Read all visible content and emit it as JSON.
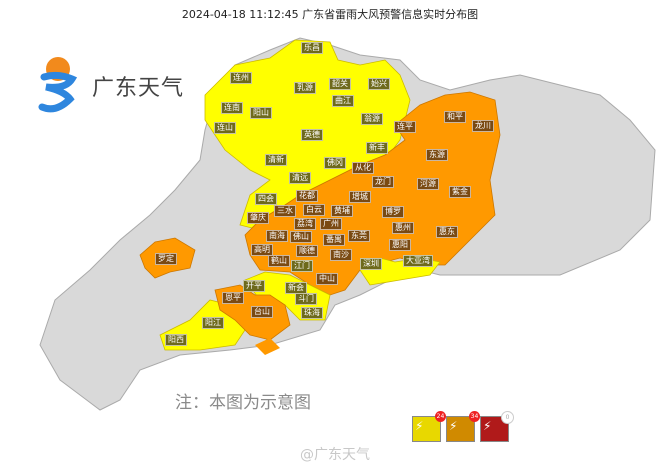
{
  "title": "2024-04-18 11:12:45 广东省雷雨大风预警信息实时分布图",
  "logo": {
    "text": "广东天气",
    "icon": "guangdong-weather-sun-swirl-logo"
  },
  "colors": {
    "yellow_warning": "#ffff00",
    "orange_warning": "#ff9900",
    "no_warning": "#d9d9d9",
    "border": "#aaaaaa"
  },
  "map": {
    "labels": [
      {
        "name": "乐昌",
        "level": "yellow"
      },
      {
        "name": "连州",
        "level": "yellow"
      },
      {
        "name": "乳源",
        "level": "yellow"
      },
      {
        "name": "韶关",
        "level": "yellow"
      },
      {
        "name": "始兴",
        "level": "yellow"
      },
      {
        "name": "曲江",
        "level": "yellow"
      },
      {
        "name": "连南",
        "level": "yellow"
      },
      {
        "name": "阳山",
        "level": "yellow"
      },
      {
        "name": "连山",
        "level": "yellow"
      },
      {
        "name": "英德",
        "level": "yellow"
      },
      {
        "name": "翁源",
        "level": "yellow"
      },
      {
        "name": "新丰",
        "level": "yellow"
      },
      {
        "name": "连平",
        "level": "orange"
      },
      {
        "name": "和平",
        "level": "orange"
      },
      {
        "name": "龙川",
        "level": "orange"
      },
      {
        "name": "东源",
        "level": "orange"
      },
      {
        "name": "清新",
        "level": "yellow"
      },
      {
        "name": "佛冈",
        "level": "yellow"
      },
      {
        "name": "从化",
        "level": "orange"
      },
      {
        "name": "龙门",
        "level": "orange"
      },
      {
        "name": "河源",
        "level": "orange"
      },
      {
        "name": "紫金",
        "level": "orange"
      },
      {
        "name": "清远",
        "level": "yellow"
      },
      {
        "name": "花都",
        "level": "orange"
      },
      {
        "name": "四会",
        "level": "yellow"
      },
      {
        "name": "增城",
        "level": "orange"
      },
      {
        "name": "博罗",
        "level": "orange"
      },
      {
        "name": "三水",
        "level": "orange"
      },
      {
        "name": "白云",
        "level": "orange"
      },
      {
        "name": "黄埔",
        "level": "orange"
      },
      {
        "name": "肇庆",
        "level": "orange"
      },
      {
        "name": "广州",
        "level": "orange"
      },
      {
        "name": "荔湾",
        "level": "orange"
      },
      {
        "name": "惠州",
        "level": "orange"
      },
      {
        "name": "南海",
        "level": "orange"
      },
      {
        "name": "佛山",
        "level": "orange"
      },
      {
        "name": "番禺",
        "level": "orange"
      },
      {
        "name": "东莞",
        "level": "orange"
      },
      {
        "name": "惠阳",
        "level": "orange"
      },
      {
        "name": "惠东",
        "level": "orange"
      },
      {
        "name": "高明",
        "level": "orange"
      },
      {
        "name": "顺德",
        "level": "orange"
      },
      {
        "name": "南沙",
        "level": "orange"
      },
      {
        "name": "深圳",
        "level": "yellow"
      },
      {
        "name": "大亚湾",
        "level": "yellow"
      },
      {
        "name": "鹤山",
        "level": "orange"
      },
      {
        "name": "江门",
        "level": "yellow"
      },
      {
        "name": "中山",
        "level": "orange"
      },
      {
        "name": "罗定",
        "level": "orange"
      },
      {
        "name": "开平",
        "level": "yellow"
      },
      {
        "name": "新会",
        "level": "yellow"
      },
      {
        "name": "恩平",
        "level": "orange"
      },
      {
        "name": "斗门",
        "level": "yellow"
      },
      {
        "name": "台山",
        "level": "orange"
      },
      {
        "name": "珠海",
        "level": "yellow"
      },
      {
        "name": "阳江",
        "level": "yellow"
      },
      {
        "name": "阳西",
        "level": "yellow"
      }
    ]
  },
  "note": "注：本图为示意图",
  "legend": [
    {
      "signal": "thunderstorm-gale-yellow",
      "color": "#e8d800",
      "count": "24"
    },
    {
      "signal": "thunderstorm-gale-orange",
      "color": "#d08a00",
      "count": "34"
    },
    {
      "signal": "thunderstorm-gale-red",
      "color": "#b01a1a",
      "count": "0"
    }
  ],
  "watermark": "@广东天气"
}
